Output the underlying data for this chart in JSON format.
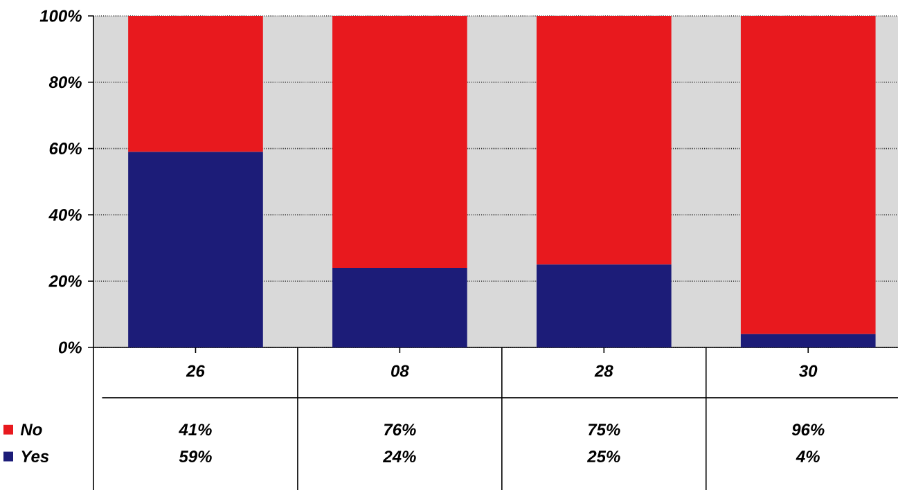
{
  "chart_data": {
    "type": "bar",
    "stacked": true,
    "categories": [
      "26",
      "08",
      "28",
      "30"
    ],
    "series": [
      {
        "name": "Yes",
        "color": "#1c1c78",
        "values": [
          59,
          24,
          25,
          4
        ],
        "value_labels": [
          "59%",
          "24%",
          "25%",
          "4%"
        ]
      },
      {
        "name": "No",
        "color": "#e8191e",
        "values": [
          41,
          76,
          75,
          96
        ],
        "value_labels": [
          "41%",
          "76%",
          "75%",
          "96%"
        ]
      }
    ],
    "ylim": [
      0,
      100
    ],
    "yticks": [
      {
        "value": 0,
        "label": "0%"
      },
      {
        "value": 20,
        "label": "20%"
      },
      {
        "value": 40,
        "label": "40%"
      },
      {
        "value": 60,
        "label": "60%"
      },
      {
        "value": 80,
        "label": "80%"
      },
      {
        "value": 100,
        "label": "100%"
      }
    ],
    "grid": "y",
    "legend": "bottom left"
  }
}
